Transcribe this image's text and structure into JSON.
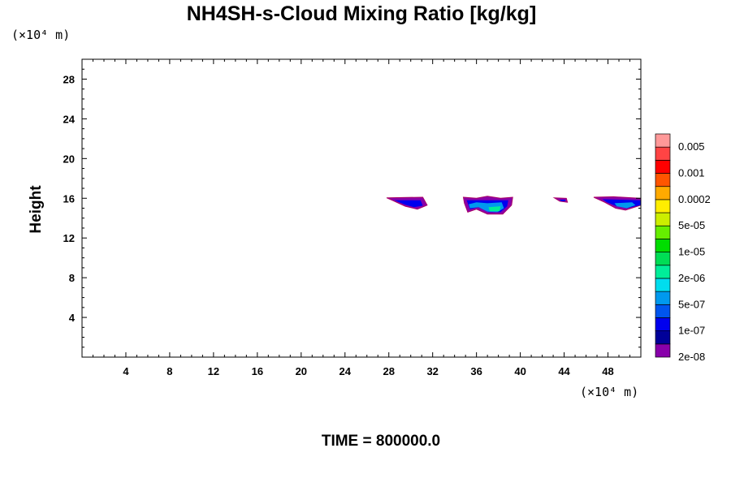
{
  "chart_data": {
    "type": "contour",
    "title": "NH4SH-s-Cloud Mixing Ratio [kg/kg]",
    "xlabel": "",
    "ylabel": "Height",
    "x_unit": "(×10⁴ m)",
    "y_unit": "(×10⁴ m)",
    "xlim": [
      0,
      51
    ],
    "ylim": [
      0,
      30
    ],
    "x_ticks": [
      4,
      8,
      12,
      16,
      20,
      24,
      28,
      32,
      36,
      40,
      44,
      48
    ],
    "y_ticks": [
      4,
      8,
      12,
      16,
      20,
      24,
      28
    ],
    "footer": "TIME = 800000.0",
    "colorbar": {
      "labels": [
        "0.005",
        "0.001",
        "0.0002",
        "5e-05",
        "1e-05",
        "2e-06",
        "5e-07",
        "1e-07",
        "2e-08"
      ],
      "colors": [
        "#8800aa",
        "#000099",
        "#0000ee",
        "#0055ee",
        "#0099ee",
        "#00ddee",
        "#00ee99",
        "#00dd55",
        "#00dd00",
        "#66ee00",
        "#ccee00",
        "#ffee00",
        "#ffaa00",
        "#ff5500",
        "#ff0000",
        "#ff4444",
        "#ff9999"
      ]
    },
    "regions": [
      {
        "levels": [
          {
            "level": 0,
            "points": [
              [
                27.8,
                16.05
              ],
              [
                31.1,
                16.1
              ],
              [
                31.5,
                15.3
              ],
              [
                30.6,
                14.9
              ],
              [
                29.5,
                15.2
              ],
              [
                28.3,
                15.8
              ]
            ]
          },
          {
            "level": 2,
            "points": [
              [
                28.5,
                15.8
              ],
              [
                30.9,
                15.8
              ],
              [
                31.1,
                15.25
              ],
              [
                30.3,
                15.1
              ],
              [
                29.5,
                15.35
              ]
            ]
          }
        ]
      },
      {
        "levels": [
          {
            "level": 0,
            "points": [
              [
                34.8,
                16.1
              ],
              [
                36.0,
                16.0
              ],
              [
                37.0,
                16.2
              ],
              [
                38.2,
                16.0
              ],
              [
                39.3,
                16.1
              ],
              [
                39.2,
                15.3
              ],
              [
                38.4,
                14.4
              ],
              [
                37.0,
                14.4
              ],
              [
                36.0,
                14.9
              ],
              [
                35.2,
                14.6
              ],
              [
                34.9,
                15.5
              ]
            ]
          },
          {
            "level": 2,
            "points": [
              [
                35.1,
                15.8
              ],
              [
                38.9,
                15.8
              ],
              [
                38.8,
                15.2
              ],
              [
                38.2,
                14.6
              ],
              [
                37.1,
                14.6
              ],
              [
                36.2,
                15.1
              ],
              [
                35.4,
                14.9
              ]
            ]
          },
          {
            "level": 4,
            "points": [
              [
                35.3,
                15.4
              ],
              [
                36.0,
                15.6
              ],
              [
                37.0,
                15.5
              ],
              [
                38.3,
                15.6
              ],
              [
                38.5,
                15.0
              ],
              [
                37.9,
                14.6
              ],
              [
                37.0,
                14.65
              ],
              [
                36.2,
                15.1
              ],
              [
                35.4,
                15.0
              ]
            ]
          },
          {
            "level": 6,
            "points": [
              [
                37.1,
                15.1
              ],
              [
                38.2,
                15.2
              ],
              [
                38.1,
                14.7
              ],
              [
                37.2,
                14.7
              ]
            ]
          }
        ]
      },
      {
        "levels": [
          {
            "level": 0,
            "points": [
              [
                43.1,
                16.05
              ],
              [
                44.2,
                16.0
              ],
              [
                44.3,
                15.6
              ],
              [
                43.6,
                15.7
              ]
            ]
          },
          {
            "level": 2,
            "points": [
              [
                43.6,
                15.85
              ],
              [
                44.1,
                15.85
              ],
              [
                44.1,
                15.7
              ],
              [
                43.7,
                15.7
              ]
            ]
          }
        ]
      },
      {
        "levels": [
          {
            "level": 0,
            "points": [
              [
                46.7,
                16.1
              ],
              [
                48.5,
                16.15
              ],
              [
                51.0,
                16.0
              ],
              [
                51.0,
                15.3
              ],
              [
                49.6,
                14.8
              ],
              [
                48.7,
                15.0
              ],
              [
                47.7,
                15.6
              ]
            ]
          },
          {
            "level": 2,
            "points": [
              [
                47.5,
                15.9
              ],
              [
                51.0,
                15.8
              ],
              [
                51.0,
                15.3
              ],
              [
                49.7,
                15.0
              ],
              [
                48.8,
                15.2
              ],
              [
                47.9,
                15.6
              ]
            ]
          },
          {
            "level": 4,
            "points": [
              [
                48.6,
                15.5
              ],
              [
                50.2,
                15.6
              ],
              [
                50.5,
                15.3
              ],
              [
                49.7,
                15.0
              ],
              [
                48.8,
                15.2
              ]
            ]
          }
        ]
      }
    ]
  }
}
